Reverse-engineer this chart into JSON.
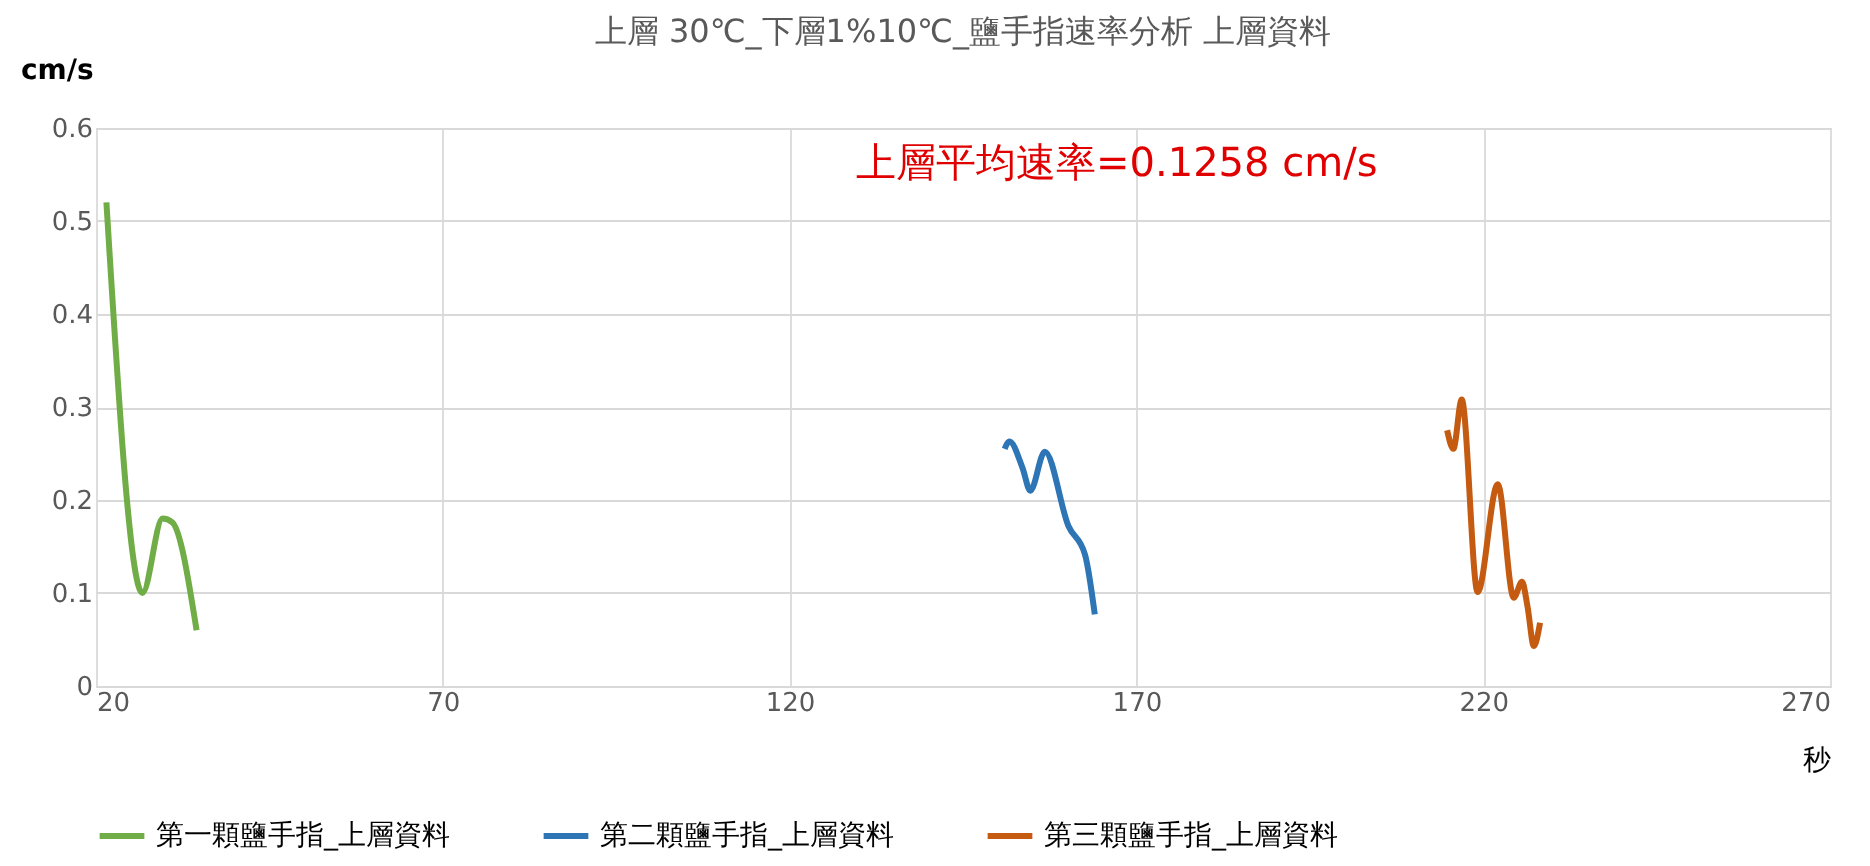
{
  "chart_data": {
    "type": "line",
    "title": "上層 30℃_下層1%10℃_鹽手指速率分析 上層資料",
    "xlabel": "秒",
    "ylabel": "cm/s",
    "xlim": [
      20,
      270
    ],
    "xticks": [
      20,
      70,
      120,
      170,
      220,
      270
    ],
    "ylim": [
      0,
      0.6
    ],
    "yticks": [
      0,
      0.1,
      0.2,
      0.3,
      0.4,
      0.5,
      0.6
    ],
    "grid": true,
    "legend": "bottom",
    "annotations": [
      "上層平均速率=0.1258 cm/s"
    ],
    "series": [
      {
        "name": "第一顆鹽手指_上層資料",
        "color": "#70ad47",
        "x": [
          21.5,
          26.7,
          29.6,
          31,
          34.5
        ],
        "values": [
          0.52,
          0.1,
          0.18,
          0.176,
          0.06
        ]
      },
      {
        "name": "第二顆鹽手指_上層資料",
        "color": "#2e75b6",
        "x": [
          151,
          151.7,
          153.6,
          154.7,
          156.8,
          160.2,
          162.6,
          164
        ],
        "values": [
          0.255,
          0.263,
          0.234,
          0.21,
          0.252,
          0.172,
          0.141,
          0.077
        ]
      },
      {
        "name": "第三顆鹽手指_上層資料",
        "color": "#c55a11",
        "x": [
          214.8,
          215.7,
          216.9,
          219.2,
          222.1,
          224.4,
          225.6,
          226.4,
          227.3,
          228.2
        ],
        "values": [
          0.275,
          0.255,
          0.308,
          0.101,
          0.217,
          0.095,
          0.112,
          0.085,
          0.043,
          0.068
        ]
      }
    ]
  }
}
